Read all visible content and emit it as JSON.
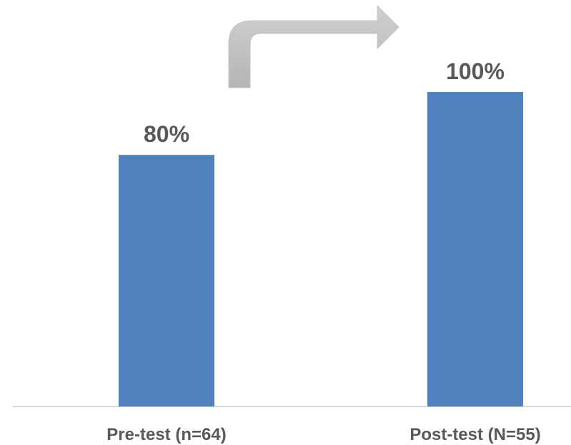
{
  "chart_data": {
    "type": "bar",
    "categories": [
      "Pre-test (n=64)",
      "Post-test (N=55)"
    ],
    "values": [
      80,
      100
    ],
    "data_labels": [
      "80%",
      "100%"
    ],
    "ylim": [
      0,
      100
    ],
    "grid": false,
    "legend": "none",
    "bar_color": "#4f81bd",
    "annotation": "curved-up-right-arrow"
  },
  "colors": {
    "bar": "#4f81bd",
    "text": "#595959",
    "axis": "#d9d9d9",
    "arrow": "#bfbfbf"
  }
}
